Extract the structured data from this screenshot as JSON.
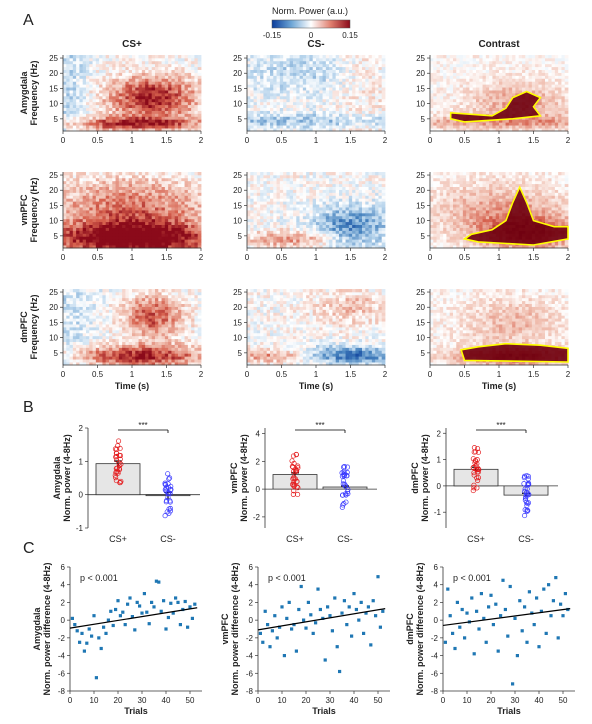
{
  "panel_letters": [
    "A",
    "B",
    "C"
  ],
  "colorbar": {
    "title": "Norm. Power (a.u.)",
    "ticks": [
      "-0.15",
      "0",
      "0.15"
    ],
    "colors": [
      "#0a3c9a",
      "#ffffff",
      "#8b0a1a"
    ]
  },
  "section_a": {
    "columns": [
      "CS+",
      "CS-",
      "Contrast"
    ],
    "rows": [
      "Amygdala",
      "vmPFC",
      "dmPFC"
    ],
    "ylabel": "Frequency (Hz)",
    "xlabel": "Time (s)",
    "xticks": [
      "0",
      "0.5",
      "1",
      "1.5",
      "2"
    ],
    "yticks": [
      "25",
      "20",
      "15",
      "10",
      "5"
    ],
    "sig_outline_color": "#ffff00"
  },
  "section_b": {
    "ylabel_line2": "Norm. power (4-8Hz)",
    "sig_label": "***",
    "colors": {
      "cs_plus": "#e41a1c",
      "cs_minus": "#3a3aff",
      "bar": "#e6e6e6"
    }
  },
  "section_c": {
    "xlabel": "Trials",
    "ylabel_line2": "Norm. power difference (4-8Hz)",
    "point_color": "#1f77b4"
  },
  "chart_data": [
    {
      "id": "B-amygdala",
      "type": "bar",
      "ylabel": "Amygdala",
      "categories": [
        "CS+",
        "CS-"
      ],
      "values": [
        0.93,
        -0.03
      ],
      "errors": [
        0.08,
        0.1
      ],
      "ylim": [
        -1,
        2
      ],
      "yticks": [
        "-1",
        "0",
        "1",
        "2"
      ],
      "significance": "***"
    },
    {
      "id": "B-vmpfc",
      "type": "bar",
      "ylabel": "vmPFC",
      "categories": [
        "CS+",
        "CS-"
      ],
      "values": [
        1.05,
        0.15
      ],
      "errors": [
        0.12,
        0.08
      ],
      "ylim": [
        -2.8,
        4.4
      ],
      "yticks": [
        "-2",
        "0",
        "2",
        "4"
      ],
      "significance": "***"
    },
    {
      "id": "B-dmpfc",
      "type": "bar",
      "ylabel": "dmPFC",
      "categories": [
        "CS+",
        "CS-"
      ],
      "values": [
        0.63,
        -0.35
      ],
      "errors": [
        0.08,
        0.07
      ],
      "ylim": [
        -1.6,
        2.2
      ],
      "yticks": [
        "-1",
        "0",
        "1",
        "2"
      ],
      "significance": "***"
    },
    {
      "id": "C-amygdala",
      "type": "scatter",
      "ylabel": "Amygdala",
      "annotation": "p < 0.001",
      "xlim": [
        0,
        55
      ],
      "ylim": [
        -8,
        6
      ],
      "xticks": [
        "0",
        "10",
        "20",
        "30",
        "40",
        "50"
      ],
      "yticks": [
        "6",
        "4",
        "2",
        "0",
        "-2",
        "-4",
        "-6",
        "-8"
      ],
      "x": [
        1,
        2,
        3,
        4,
        5,
        6,
        7,
        8,
        9,
        10,
        11,
        12,
        13,
        14,
        15,
        16,
        17,
        18,
        19,
        20,
        21,
        22,
        23,
        24,
        25,
        26,
        27,
        28,
        29,
        30,
        31,
        32,
        33,
        34,
        35,
        36,
        37,
        38,
        39,
        40,
        41,
        42,
        43,
        44,
        45,
        46,
        47,
        48,
        49,
        50,
        51,
        52
      ],
      "y": [
        0.2,
        -0.5,
        -1.2,
        -2.5,
        -1.5,
        -3.5,
        -2.6,
        -1.0,
        -1.8,
        0.5,
        -6.5,
        -2.0,
        -3.2,
        -0.8,
        -1.5,
        0.0,
        1.0,
        -0.6,
        1.2,
        2.2,
        0.5,
        0.9,
        -0.5,
        1.8,
        2.5,
        0.4,
        -1.1,
        2.0,
        1.6,
        0.8,
        3.0,
        0.9,
        -0.4,
        2.0,
        1.5,
        4.4,
        4.3,
        1.0,
        2.2,
        -1.0,
        0.3,
        1.9,
        0.8,
        2.5,
        2.0,
        -0.5,
        1.2,
        2.1,
        -0.8,
        1.5,
        0.2,
        1.8
      ],
      "fit": {
        "x": [
          0,
          53
        ],
        "y": [
          -0.9,
          1.4
        ]
      }
    },
    {
      "id": "C-vmpfc",
      "type": "scatter",
      "ylabel": "vmPFC",
      "annotation": "p < 0.001",
      "xlim": [
        0,
        55
      ],
      "ylim": [
        -8,
        6
      ],
      "xticks": [
        "0",
        "10",
        "20",
        "30",
        "40",
        "50"
      ],
      "yticks": [
        "6",
        "4",
        "2",
        "0",
        "-2",
        "-4",
        "-6",
        "-8"
      ],
      "x": [
        1,
        2,
        3,
        4,
        5,
        6,
        7,
        8,
        9,
        10,
        11,
        12,
        13,
        14,
        15,
        16,
        17,
        18,
        19,
        20,
        21,
        22,
        23,
        24,
        25,
        26,
        27,
        28,
        29,
        30,
        31,
        32,
        33,
        34,
        35,
        36,
        37,
        38,
        39,
        40,
        41,
        42,
        43,
        44,
        45,
        46,
        47,
        48,
        49,
        50,
        51,
        52
      ],
      "y": [
        -1.5,
        -2.5,
        1.0,
        -0.5,
        -3.0,
        -1.2,
        0.5,
        -2.0,
        -0.8,
        1.5,
        -4.0,
        0.2,
        2.0,
        -1.0,
        -0.5,
        -3.5,
        1.2,
        3.8,
        0.0,
        -0.9,
        2.0,
        0.6,
        -1.5,
        -0.3,
        3.5,
        1.2,
        0.2,
        -4.5,
        1.5,
        0.5,
        -1.2,
        2.5,
        -3.0,
        -5.8,
        0.8,
        2.2,
        -0.5,
        1.5,
        -1.8,
        3.0,
        1.2,
        0.0,
        2.0,
        -1.5,
        0.8,
        1.5,
        -2.8,
        2.2,
        0.5,
        4.9,
        -0.8,
        1.0
      ],
      "fit": {
        "x": [
          0,
          53
        ],
        "y": [
          -1.1,
          1.3
        ]
      }
    },
    {
      "id": "C-dmpfc",
      "type": "scatter",
      "ylabel": "dmPFC",
      "annotation": "p < 0.001",
      "xlim": [
        0,
        55
      ],
      "ylim": [
        -8,
        6
      ],
      "xticks": [
        "0",
        "10",
        "20",
        "30",
        "40",
        "50"
      ],
      "yticks": [
        "6",
        "4",
        "2",
        "0",
        "-2",
        "-4",
        "-6",
        "-8"
      ],
      "x": [
        1,
        2,
        3,
        4,
        5,
        6,
        7,
        8,
        9,
        10,
        11,
        12,
        13,
        14,
        15,
        16,
        17,
        18,
        19,
        20,
        21,
        22,
        23,
        24,
        25,
        26,
        27,
        28,
        29,
        30,
        31,
        32,
        33,
        34,
        35,
        36,
        37,
        38,
        39,
        40,
        41,
        42,
        43,
        44,
        45,
        46,
        47,
        48,
        49,
        50,
        51,
        52
      ],
      "y": [
        -2.5,
        3.5,
        0.5,
        -1.5,
        -3.2,
        2.0,
        -0.8,
        1.2,
        -2.0,
        0.8,
        -0.2,
        2.5,
        -3.8,
        1.0,
        -1.0,
        3.0,
        0.2,
        -2.5,
        1.5,
        2.8,
        -0.5,
        1.8,
        -3.5,
        0.5,
        4.5,
        1.2,
        -1.8,
        3.8,
        -7.2,
        0.2,
        -4.0,
        2.2,
        -1.2,
        1.5,
        -2.5,
        3.2,
        0.8,
        -0.5,
        2.5,
        -3.0,
        1.0,
        3.5,
        -1.5,
        4.0,
        0.5,
        2.2,
        4.8,
        -2.0,
        1.8,
        0.5,
        3.0,
        1.2
      ],
      "fit": {
        "x": [
          0,
          53
        ],
        "y": [
          -0.6,
          1.3
        ]
      }
    }
  ]
}
